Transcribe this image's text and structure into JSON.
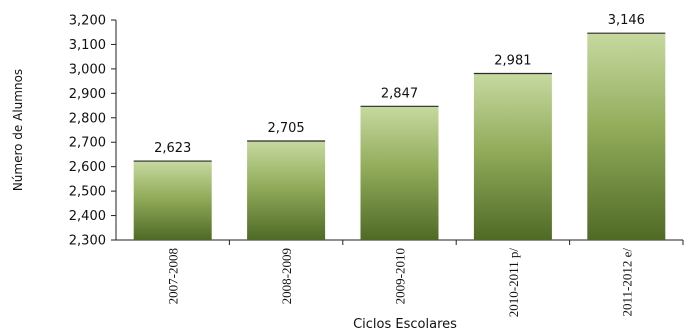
{
  "chart_data": {
    "type": "bar",
    "categories": [
      "2007-2008",
      "2008-2009",
      "2009-2010",
      "2010-2011 p/",
      "2011-2012 e/"
    ],
    "values": [
      2623,
      2705,
      2847,
      2981,
      3146
    ],
    "value_labels": [
      "2,623",
      "2,705",
      "2,847",
      "2,981",
      "3,146"
    ],
    "ylabel": "Número de Alumnos",
    "xlabel": "Ciclos Escolares",
    "ylim": [
      2300,
      3200
    ],
    "yticks": [
      2300,
      2400,
      2500,
      2600,
      2700,
      2800,
      2900,
      3000,
      3100,
      3200
    ],
    "ytick_labels": [
      "2,300",
      "2,400",
      "2,500",
      "2,600",
      "2,700",
      "2,800",
      "2,900",
      "3,000",
      "3,100",
      "3,200"
    ],
    "grid": false,
    "bar_color_top": "#c6d9a0",
    "bar_color_bottom": "#4f6a25"
  }
}
